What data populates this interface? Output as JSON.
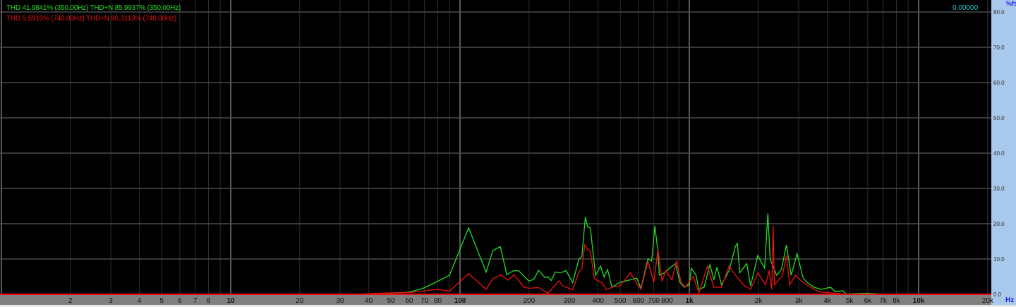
{
  "legend": [
    {
      "text": "THD 41.9841% (350.00Hz) THD+N 85.9937% (350.00Hz)",
      "color": "#22dd22"
    },
    {
      "text": "THD 5.5916% (740.00Hz) THD+N 90.3113% (740.00Hz)",
      "color": "#ee1111"
    }
  ],
  "readout": "0.00000",
  "chart_data": {
    "type": "line",
    "xscale": "log",
    "xlim": [
      1,
      20000
    ],
    "ylim": [
      0,
      80
    ],
    "ylabel": "%fs",
    "xlabel": "Hz",
    "grid": true,
    "background": "#000000",
    "y_ticks": [
      "80.0",
      "70.0",
      "60.0",
      "50.0",
      "40.0",
      "30.0",
      "20.0",
      "10.0",
      "0.0"
    ],
    "x_ticks": [
      {
        "v": 2,
        "label": "2"
      },
      {
        "v": 3,
        "label": "3"
      },
      {
        "v": 4,
        "label": "4"
      },
      {
        "v": 5,
        "label": "5"
      },
      {
        "v": 6,
        "label": "6"
      },
      {
        "v": 7,
        "label": "7"
      },
      {
        "v": 8,
        "label": "8"
      },
      {
        "v": 10,
        "label": "10",
        "bold": true
      },
      {
        "v": 20,
        "label": "20"
      },
      {
        "v": 30,
        "label": "30"
      },
      {
        "v": 40,
        "label": "40"
      },
      {
        "v": 50,
        "label": "50"
      },
      {
        "v": 60,
        "label": "60"
      },
      {
        "v": 70,
        "label": "70"
      },
      {
        "v": 80,
        "label": "80"
      },
      {
        "v": 100,
        "label": "100",
        "bold": true
      },
      {
        "v": 200,
        "label": "200"
      },
      {
        "v": 300,
        "label": "300"
      },
      {
        "v": 400,
        "label": "400"
      },
      {
        "v": 500,
        "label": "500"
      },
      {
        "v": 600,
        "label": "600"
      },
      {
        "v": 700,
        "label": "700"
      },
      {
        "v": 800,
        "label": "800"
      },
      {
        "v": 1000,
        "label": "1k",
        "bold": true
      },
      {
        "v": 2000,
        "label": "2k"
      },
      {
        "v": 3000,
        "label": "3k"
      },
      {
        "v": 4000,
        "label": "4k"
      },
      {
        "v": 5000,
        "label": "5k"
      },
      {
        "v": 6000,
        "label": "6k"
      },
      {
        "v": 7000,
        "label": "7k"
      },
      {
        "v": 8000,
        "label": "8k"
      },
      {
        "v": 10000,
        "label": "10k",
        "bold": true
      },
      {
        "v": 20000,
        "label": "20k"
      }
    ],
    "series": [
      {
        "color": "#22dd22",
        "points": [
          [
            35,
            0
          ],
          [
            45,
            0.1
          ],
          [
            52,
            0.4
          ],
          [
            60,
            0.6
          ],
          [
            69,
            1.7
          ],
          [
            80,
            3.7
          ],
          [
            90,
            5.4
          ],
          [
            109,
            18.8
          ],
          [
            130,
            6.3
          ],
          [
            139,
            12.4
          ],
          [
            150,
            13.5
          ],
          [
            160,
            5.5
          ],
          [
            170,
            6.6
          ],
          [
            180,
            6.7
          ],
          [
            200,
            3.7
          ],
          [
            210,
            4.3
          ],
          [
            220,
            6.8
          ],
          [
            235,
            4.7
          ],
          [
            242,
            4.9
          ],
          [
            250,
            3.9
          ],
          [
            260,
            6.3
          ],
          [
            275,
            6.1
          ],
          [
            290,
            6.7
          ],
          [
            310,
            3.3
          ],
          [
            330,
            10
          ],
          [
            340,
            10.7
          ],
          [
            352,
            21.9
          ],
          [
            360,
            19.2
          ],
          [
            370,
            18.8
          ],
          [
            390,
            5.4
          ],
          [
            410,
            8
          ],
          [
            425,
            4.9
          ],
          [
            440,
            7
          ],
          [
            460,
            2
          ],
          [
            499,
            3.4
          ],
          [
            553,
            4.1
          ],
          [
            590,
            4.6
          ],
          [
            615,
            1.7
          ],
          [
            660,
            10.1
          ],
          [
            685,
            9.4
          ],
          [
            707,
            19.4
          ],
          [
            730,
            12
          ],
          [
            740,
            5.4
          ],
          [
            780,
            6.1
          ],
          [
            820,
            7.4
          ],
          [
            870,
            8.7
          ],
          [
            910,
            3.4
          ],
          [
            950,
            2
          ],
          [
            1000,
            2.7
          ],
          [
            1020,
            7.4
          ],
          [
            1070,
            5.4
          ],
          [
            1100,
            1.4
          ],
          [
            1160,
            2
          ],
          [
            1230,
            8.4
          ],
          [
            1280,
            4.1
          ],
          [
            1320,
            7.7
          ],
          [
            1380,
            2.7
          ],
          [
            1490,
            6.7
          ],
          [
            1590,
            13.7
          ],
          [
            1620,
            14.4
          ],
          [
            1660,
            6.1
          ],
          [
            1780,
            8.7
          ],
          [
            1850,
            2.4
          ],
          [
            1990,
            11
          ],
          [
            2130,
            7.4
          ],
          [
            2200,
            22.9
          ],
          [
            2250,
            10
          ],
          [
            2400,
            5.4
          ],
          [
            2520,
            7
          ],
          [
            2650,
            14
          ],
          [
            2780,
            5.4
          ],
          [
            2950,
            11.5
          ],
          [
            3130,
            4.7
          ],
          [
            3260,
            3.4
          ],
          [
            3500,
            2
          ],
          [
            3760,
            1.4
          ],
          [
            4130,
            2
          ],
          [
            4330,
            0.7
          ],
          [
            4650,
            1
          ],
          [
            4820,
            0.1
          ],
          [
            5900,
            0.3
          ],
          [
            6400,
            0.2
          ],
          [
            7000,
            0
          ]
        ]
      },
      {
        "color": "#ee1111",
        "points": [
          [
            1,
            0
          ],
          [
            35,
            0
          ],
          [
            44,
            0.3
          ],
          [
            60,
            0.5
          ],
          [
            69,
            0.9
          ],
          [
            80,
            1.4
          ],
          [
            90,
            0.9
          ],
          [
            109,
            5.9
          ],
          [
            130,
            1.4
          ],
          [
            139,
            4.4
          ],
          [
            151,
            5.5
          ],
          [
            162,
            4
          ],
          [
            172,
            5.5
          ],
          [
            190,
            2
          ],
          [
            200,
            1.7
          ],
          [
            220,
            1.9
          ],
          [
            242,
            0.3
          ],
          [
            270,
            3.8
          ],
          [
            282,
            2.3
          ],
          [
            310,
            1.3
          ],
          [
            330,
            6.3
          ],
          [
            340,
            7.3
          ],
          [
            350,
            14
          ],
          [
            360,
            12.7
          ],
          [
            370,
            12.3
          ],
          [
            385,
            4.4
          ],
          [
            415,
            3.3
          ],
          [
            435,
            1.3
          ],
          [
            465,
            2.1
          ],
          [
            499,
            2.4
          ],
          [
            553,
            6.1
          ],
          [
            590,
            3.1
          ],
          [
            615,
            1.4
          ],
          [
            660,
            9.4
          ],
          [
            700,
            3.4
          ],
          [
            730,
            12.7
          ],
          [
            760,
            3.7
          ],
          [
            790,
            6.7
          ],
          [
            840,
            4.1
          ],
          [
            880,
            9.5
          ],
          [
            920,
            3.4
          ],
          [
            960,
            2
          ],
          [
            1040,
            5.1
          ],
          [
            1100,
            0.4
          ],
          [
            1200,
            8
          ],
          [
            1280,
            2
          ],
          [
            1380,
            2
          ],
          [
            1490,
            8
          ],
          [
            1590,
            5.4
          ],
          [
            1720,
            2.7
          ],
          [
            1850,
            1.4
          ],
          [
            1990,
            6.1
          ],
          [
            2150,
            2.7
          ],
          [
            2230,
            6.7
          ],
          [
            2290,
            1.4
          ],
          [
            2320,
            19.4
          ],
          [
            2350,
            2.7
          ],
          [
            2550,
            5.4
          ],
          [
            2650,
            11
          ],
          [
            2740,
            2.7
          ],
          [
            2900,
            5.4
          ],
          [
            3130,
            3.4
          ],
          [
            3380,
            2
          ],
          [
            3680,
            0.7
          ],
          [
            4130,
            0.4
          ],
          [
            4650,
            0.1
          ],
          [
            4820,
            0
          ],
          [
            20000,
            0
          ]
        ]
      }
    ]
  }
}
